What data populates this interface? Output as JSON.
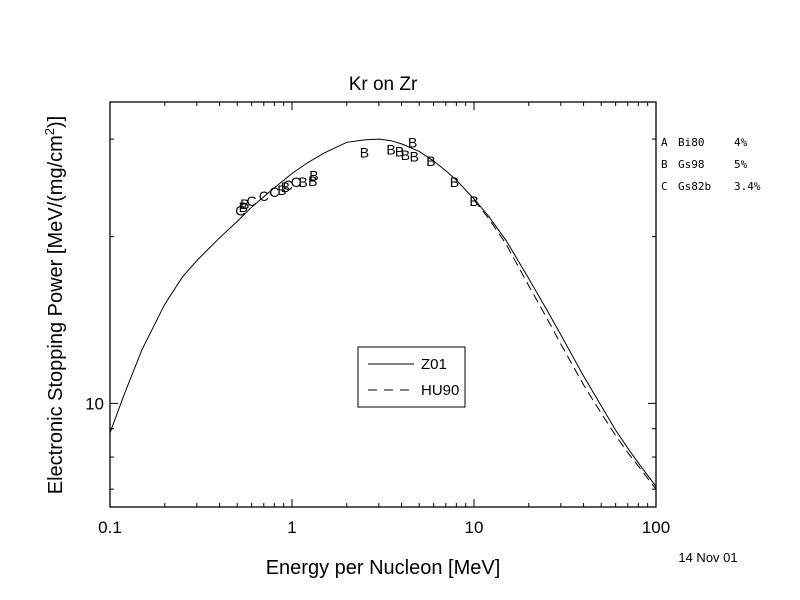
{
  "chart_data": {
    "type": "line",
    "title": "Kr on Zr",
    "xlabel": "Energy per Nucleon [MeV]",
    "ylabel_prefix": "Electronic Stopping Power [MeV/(mg/cm",
    "ylabel_sup": "2",
    "ylabel_suffix": ")]",
    "x_scale": "log",
    "y_scale": "log",
    "xlim": [
      0.1,
      100
    ],
    "ylim": [
      6.5,
      35
    ],
    "x_ticks": [
      {
        "value": 0.1,
        "label": "0.1"
      },
      {
        "value": 1,
        "label": "1"
      },
      {
        "value": 10,
        "label": "10"
      },
      {
        "value": 100,
        "label": "100"
      }
    ],
    "y_ticks": [
      {
        "value": 10,
        "label": "10"
      }
    ],
    "grid": false,
    "legend_position": "center",
    "series": [
      {
        "name": "Z01",
        "style": "solid",
        "x": [
          0.1,
          0.12,
          0.15,
          0.2,
          0.25,
          0.3,
          0.4,
          0.5,
          0.6,
          0.7,
          0.8,
          1.0,
          1.2,
          1.5,
          2.0,
          2.5,
          3.0,
          3.5,
          4.0,
          5.0,
          6.0,
          7.0,
          8.0,
          10.0,
          12.0,
          15.0,
          20.0,
          25.0,
          30.0,
          40.0,
          50.0,
          60.0,
          70.0,
          80.0,
          100.0
        ],
        "y": [
          8.85,
          10.4,
          12.5,
          15.1,
          16.9,
          18.1,
          19.9,
          21.3,
          22.6,
          23.6,
          24.5,
          26.0,
          27.1,
          28.3,
          29.6,
          29.9,
          30.0,
          29.8,
          29.4,
          28.5,
          27.4,
          26.3,
          25.3,
          23.4,
          21.8,
          19.7,
          16.8,
          14.8,
          13.3,
          11.2,
          9.9,
          8.95,
          8.3,
          7.8,
          7.08
        ]
      },
      {
        "name": "HU90",
        "style": "dashed",
        "x": [
          10.0,
          12.0,
          15.0,
          20.0,
          25.0,
          30.0,
          40.0,
          50.0,
          60.0,
          70.0,
          80.0,
          100.0
        ],
        "y": [
          23.3,
          21.6,
          19.4,
          16.3,
          14.3,
          12.8,
          10.8,
          9.6,
          8.75,
          8.15,
          7.7,
          7.0
        ]
      }
    ],
    "points": [
      {
        "label": "C",
        "x": 0.52,
        "y": 22.3
      },
      {
        "label": "B",
        "x": 0.54,
        "y": 22.6
      },
      {
        "label": "B",
        "x": 0.55,
        "y": 22.9
      },
      {
        "label": "C",
        "x": 0.6,
        "y": 23.2
      },
      {
        "label": "C",
        "x": 0.7,
        "y": 23.7
      },
      {
        "label": "C",
        "x": 0.8,
        "y": 24.1
      },
      {
        "label": "B",
        "x": 0.88,
        "y": 24.3
      },
      {
        "label": "B",
        "x": 0.92,
        "y": 24.6
      },
      {
        "label": "C",
        "x": 0.95,
        "y": 24.8
      },
      {
        "label": "C",
        "x": 1.05,
        "y": 25.1
      },
      {
        "label": "B",
        "x": 1.15,
        "y": 25.1
      },
      {
        "label": "B",
        "x": 1.3,
        "y": 25.2
      },
      {
        "label": "B",
        "x": 1.32,
        "y": 25.8
      },
      {
        "label": "B",
        "x": 2.5,
        "y": 28.4
      },
      {
        "label": "B",
        "x": 3.5,
        "y": 28.7
      },
      {
        "label": "B",
        "x": 3.9,
        "y": 28.5
      },
      {
        "label": "B",
        "x": 4.2,
        "y": 28.1
      },
      {
        "label": "B",
        "x": 4.6,
        "y": 29.6
      },
      {
        "label": "B",
        "x": 4.7,
        "y": 27.9
      },
      {
        "label": "B",
        "x": 5.8,
        "y": 27.4
      },
      {
        "label": "B",
        "x": 7.8,
        "y": 25.1
      },
      {
        "label": "B",
        "x": 10.0,
        "y": 23.2
      }
    ],
    "refs": [
      {
        "code": "A",
        "ref": "Bi80",
        "err": "4%"
      },
      {
        "code": "B",
        "ref": "Gs98",
        "err": "5%"
      },
      {
        "code": "C",
        "ref": "Gs82b",
        "err": "3.4%"
      }
    ],
    "date": "14 Nov 01"
  }
}
